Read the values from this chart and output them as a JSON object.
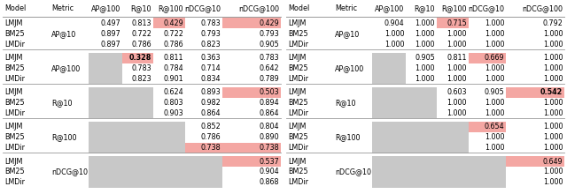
{
  "tables": [
    {
      "header": [
        "Model",
        "Metric",
        "AP@100",
        "R@10",
        "R@100",
        "nDCG@10",
        "nDCG@100"
      ],
      "groups": [
        {
          "metric": "AP@10",
          "rows": [
            {
              "model": "LMJM",
              "values": [
                0.497,
                0.813,
                0.429,
                0.783,
                0.429
              ],
              "highlight": [
                false,
                false,
                true,
                false,
                true
              ],
              "bold": [
                false,
                false,
                false,
                false,
                false
              ]
            },
            {
              "model": "BM25",
              "values": [
                0.897,
                0.722,
                0.722,
                0.793,
                0.793
              ],
              "highlight": [
                false,
                false,
                false,
                false,
                false
              ],
              "bold": [
                false,
                false,
                false,
                false,
                false
              ]
            },
            {
              "model": "LMDir",
              "values": [
                0.897,
                0.786,
                0.786,
                0.823,
                0.905
              ],
              "highlight": [
                false,
                false,
                false,
                false,
                false
              ],
              "bold": [
                false,
                false,
                false,
                false,
                false
              ]
            }
          ],
          "gray_cols": []
        },
        {
          "metric": "AP@100",
          "rows": [
            {
              "model": "LMJM",
              "values": [
                null,
                0.328,
                0.811,
                0.363,
                0.783
              ],
              "highlight": [
                false,
                true,
                false,
                false,
                false
              ],
              "bold": [
                false,
                true,
                false,
                false,
                false
              ]
            },
            {
              "model": "BM25",
              "values": [
                null,
                0.783,
                0.784,
                0.714,
                0.642
              ],
              "highlight": [
                false,
                false,
                false,
                false,
                false
              ],
              "bold": [
                false,
                false,
                false,
                false,
                false
              ]
            },
            {
              "model": "LMDir",
              "values": [
                null,
                0.823,
                0.901,
                0.834,
                0.789
              ],
              "highlight": [
                false,
                false,
                false,
                false,
                false
              ],
              "bold": [
                false,
                false,
                false,
                false,
                false
              ]
            }
          ],
          "gray_cols": [
            0
          ]
        },
        {
          "metric": "R@10",
          "rows": [
            {
              "model": "LMJM",
              "values": [
                null,
                null,
                0.624,
                0.893,
                0.503
              ],
              "highlight": [
                false,
                false,
                false,
                false,
                true
              ],
              "bold": [
                false,
                false,
                false,
                false,
                false
              ]
            },
            {
              "model": "BM25",
              "values": [
                null,
                null,
                0.803,
                0.982,
                0.894
              ],
              "highlight": [
                false,
                false,
                false,
                false,
                false
              ],
              "bold": [
                false,
                false,
                false,
                false,
                false
              ]
            },
            {
              "model": "LMDir",
              "values": [
                null,
                null,
                0.903,
                0.864,
                0.864
              ],
              "highlight": [
                false,
                false,
                false,
                false,
                false
              ],
              "bold": [
                false,
                false,
                false,
                false,
                false
              ]
            }
          ],
          "gray_cols": [
            0,
            1
          ]
        },
        {
          "metric": "R@100",
          "rows": [
            {
              "model": "LMJM",
              "values": [
                null,
                null,
                null,
                0.852,
                0.804
              ],
              "highlight": [
                false,
                false,
                false,
                false,
                false
              ],
              "bold": [
                false,
                false,
                false,
                false,
                false
              ]
            },
            {
              "model": "BM25",
              "values": [
                null,
                null,
                null,
                0.786,
                0.89
              ],
              "highlight": [
                false,
                false,
                false,
                false,
                false
              ],
              "bold": [
                false,
                false,
                false,
                false,
                false
              ]
            },
            {
              "model": "LMDir",
              "values": [
                null,
                null,
                null,
                0.738,
                0.738
              ],
              "highlight": [
                false,
                false,
                false,
                true,
                true
              ],
              "bold": [
                false,
                false,
                false,
                false,
                false
              ]
            }
          ],
          "gray_cols": [
            0,
            1,
            2
          ]
        },
        {
          "metric": "nDCG@10",
          "rows": [
            {
              "model": "LMJM",
              "values": [
                null,
                null,
                null,
                null,
                0.537
              ],
              "highlight": [
                false,
                false,
                false,
                false,
                true
              ],
              "bold": [
                false,
                false,
                false,
                false,
                false
              ]
            },
            {
              "model": "BM25",
              "values": [
                null,
                null,
                null,
                null,
                0.904
              ],
              "highlight": [
                false,
                false,
                false,
                false,
                false
              ],
              "bold": [
                false,
                false,
                false,
                false,
                false
              ]
            },
            {
              "model": "LMDir",
              "values": [
                null,
                null,
                null,
                null,
                0.868
              ],
              "highlight": [
                false,
                false,
                false,
                false,
                false
              ],
              "bold": [
                false,
                false,
                false,
                false,
                false
              ]
            }
          ],
          "gray_cols": [
            0,
            1,
            2,
            3
          ]
        }
      ]
    },
    {
      "header": [
        "Model",
        "Metric",
        "AP@100",
        "R@10",
        "R@100",
        "nDCG@10",
        "nDCG@100"
      ],
      "groups": [
        {
          "metric": "AP@10",
          "rows": [
            {
              "model": "LMJM",
              "values": [
                0.904,
                1.0,
                0.715,
                1.0,
                0.792
              ],
              "highlight": [
                false,
                false,
                true,
                false,
                false
              ],
              "bold": [
                false,
                false,
                false,
                false,
                false
              ]
            },
            {
              "model": "BM25",
              "values": [
                1.0,
                1.0,
                1.0,
                1.0,
                1.0
              ],
              "highlight": [
                false,
                false,
                false,
                false,
                false
              ],
              "bold": [
                false,
                false,
                false,
                false,
                false
              ]
            },
            {
              "model": "LMDir",
              "values": [
                1.0,
                1.0,
                1.0,
                1.0,
                1.0
              ],
              "highlight": [
                false,
                false,
                false,
                false,
                false
              ],
              "bold": [
                false,
                false,
                false,
                false,
                false
              ]
            }
          ],
          "gray_cols": []
        },
        {
          "metric": "AP@100",
          "rows": [
            {
              "model": "LMJM",
              "values": [
                null,
                0.905,
                0.811,
                0.669,
                1.0
              ],
              "highlight": [
                false,
                false,
                false,
                true,
                false
              ],
              "bold": [
                false,
                false,
                false,
                false,
                false
              ]
            },
            {
              "model": "BM25",
              "values": [
                null,
                1.0,
                1.0,
                1.0,
                1.0
              ],
              "highlight": [
                false,
                false,
                false,
                false,
                false
              ],
              "bold": [
                false,
                false,
                false,
                false,
                false
              ]
            },
            {
              "model": "LMDir",
              "values": [
                null,
                1.0,
                1.0,
                1.0,
                1.0
              ],
              "highlight": [
                false,
                false,
                false,
                false,
                false
              ],
              "bold": [
                false,
                false,
                false,
                false,
                false
              ]
            }
          ],
          "gray_cols": [
            0
          ]
        },
        {
          "metric": "R@10",
          "rows": [
            {
              "model": "LMJM",
              "values": [
                null,
                null,
                0.603,
                0.905,
                0.542
              ],
              "highlight": [
                false,
                false,
                false,
                false,
                true
              ],
              "bold": [
                false,
                false,
                false,
                false,
                true
              ]
            },
            {
              "model": "BM25",
              "values": [
                null,
                null,
                1.0,
                1.0,
                1.0
              ],
              "highlight": [
                false,
                false,
                false,
                false,
                false
              ],
              "bold": [
                false,
                false,
                false,
                false,
                false
              ]
            },
            {
              "model": "LMDir",
              "values": [
                null,
                null,
                1.0,
                1.0,
                1.0
              ],
              "highlight": [
                false,
                false,
                false,
                false,
                false
              ],
              "bold": [
                false,
                false,
                false,
                false,
                false
              ]
            }
          ],
          "gray_cols": [
            0,
            1
          ]
        },
        {
          "metric": "R@100",
          "rows": [
            {
              "model": "LMJM",
              "values": [
                null,
                null,
                null,
                0.654,
                1.0
              ],
              "highlight": [
                false,
                false,
                false,
                true,
                false
              ],
              "bold": [
                false,
                false,
                false,
                false,
                false
              ]
            },
            {
              "model": "BM25",
              "values": [
                null,
                null,
                null,
                1.0,
                1.0
              ],
              "highlight": [
                false,
                false,
                false,
                false,
                false
              ],
              "bold": [
                false,
                false,
                false,
                false,
                false
              ]
            },
            {
              "model": "LMDir",
              "values": [
                null,
                null,
                null,
                1.0,
                1.0
              ],
              "highlight": [
                false,
                false,
                false,
                false,
                false
              ],
              "bold": [
                false,
                false,
                false,
                false,
                false
              ]
            }
          ],
          "gray_cols": [
            0,
            1,
            2
          ]
        },
        {
          "metric": "nDCG@10",
          "rows": [
            {
              "model": "LMJM",
              "values": [
                null,
                null,
                null,
                null,
                0.649
              ],
              "highlight": [
                false,
                false,
                false,
                false,
                true
              ],
              "bold": [
                false,
                false,
                false,
                false,
                false
              ]
            },
            {
              "model": "BM25",
              "values": [
                null,
                null,
                null,
                null,
                1.0
              ],
              "highlight": [
                false,
                false,
                false,
                false,
                false
              ],
              "bold": [
                false,
                false,
                false,
                false,
                false
              ]
            },
            {
              "model": "LMDir",
              "values": [
                null,
                null,
                null,
                null,
                1.0
              ],
              "highlight": [
                false,
                false,
                false,
                false,
                false
              ],
              "bold": [
                false,
                false,
                false,
                false,
                false
              ]
            }
          ],
          "gray_cols": [
            0,
            1,
            2,
            3
          ]
        }
      ]
    }
  ],
  "highlight_color": "#f4a7a3",
  "gray_color": "#c8c8c8",
  "line_color": "#999999",
  "text_color": "#000000",
  "bg_color": "#ffffff",
  "fontsize": 5.8,
  "header_fontsize": 5.8
}
